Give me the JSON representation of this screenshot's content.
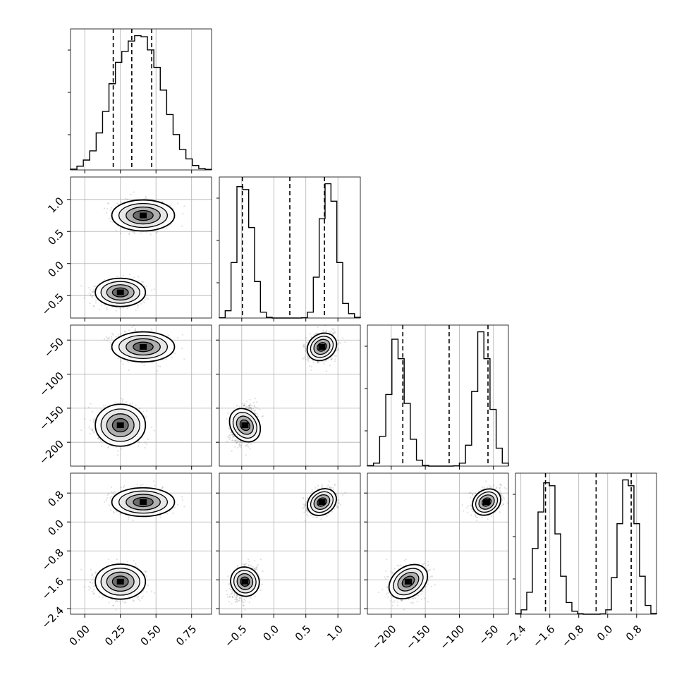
{
  "chart_data": {
    "type": "corner",
    "title": "",
    "grid": true,
    "quantiles_marked": [
      0.16,
      0.5,
      0.84
    ],
    "parameters": [
      {
        "label": "",
        "range": [
          -0.1,
          0.89
        ],
        "ticks": [
          0.0,
          0.25,
          0.5,
          0.75
        ],
        "tick_labels": [
          "0.00",
          "0.25",
          "0.50",
          "0.75"
        ],
        "quantile_lines": [
          0.2,
          0.33,
          0.47
        ],
        "hist_bins": [
          0.62,
          2.8,
          7.3,
          14.1,
          27.4,
          43.3,
          63.8,
          79.6,
          87.7,
          95.4,
          99.4,
          98.6,
          88.8,
          75.9,
          59.1,
          41.0,
          26.2,
          15.1,
          8.2,
          3.3,
          1.1,
          0.4
        ]
      },
      {
        "label": "",
        "range": [
          -0.85,
          1.35
        ],
        "ticks": [
          -0.5,
          0.0,
          0.5,
          1.0
        ],
        "tick_labels": [
          "−0.5",
          "0.0",
          "0.5",
          "1.0"
        ],
        "quantile_lines": [
          -0.49,
          0.25,
          0.79
        ],
        "hist_bins": [
          0.2,
          5,
          38,
          90,
          88,
          62,
          25,
          4,
          0.5,
          0,
          0,
          0,
          0,
          0,
          0.2,
          4,
          28,
          68,
          92,
          80,
          38,
          10,
          3,
          0.5
        ]
      },
      {
        "label": "",
        "range": [
          -235,
          -28
        ],
        "ticks": [
          -200,
          -150,
          -100,
          -50
        ],
        "tick_labels": [
          "−200",
          "−150",
          "−100",
          "−50"
        ],
        "quantile_lines": [
          -183,
          -115,
          -58
        ],
        "hist_bins": [
          0.3,
          2,
          20,
          48,
          85,
          72,
          42,
          18,
          4,
          0.5,
          0,
          0,
          0,
          0,
          0.2,
          2,
          14,
          50,
          90,
          72,
          38,
          12,
          2
        ]
      },
      {
        "label": "",
        "range": [
          -2.55,
          1.35
        ],
        "ticks": [
          -2.4,
          -1.6,
          -0.8,
          0.0,
          0.8
        ],
        "tick_labels": [
          "−2.4",
          "−1.6",
          "−0.8",
          "0.0",
          "0.8"
        ],
        "quantile_lines": [
          -1.72,
          -0.32,
          0.65
        ],
        "hist_bins": [
          0.3,
          3,
          15,
          45,
          70,
          90,
          88,
          55,
          26,
          8,
          2,
          0.3,
          0,
          0,
          0,
          0.2,
          3,
          25,
          62,
          92,
          88,
          62,
          26,
          6,
          0.5
        ]
      }
    ],
    "modes": [
      {
        "mean": [
          0.25,
          -0.45,
          -175,
          -1.65
        ],
        "sd": [
          0.08,
          0.1,
          14,
          0.22
        ]
      },
      {
        "mean": [
          0.41,
          0.75,
          -60,
          0.55
        ],
        "sd": [
          0.1,
          0.11,
          10,
          0.18
        ]
      }
    ]
  }
}
